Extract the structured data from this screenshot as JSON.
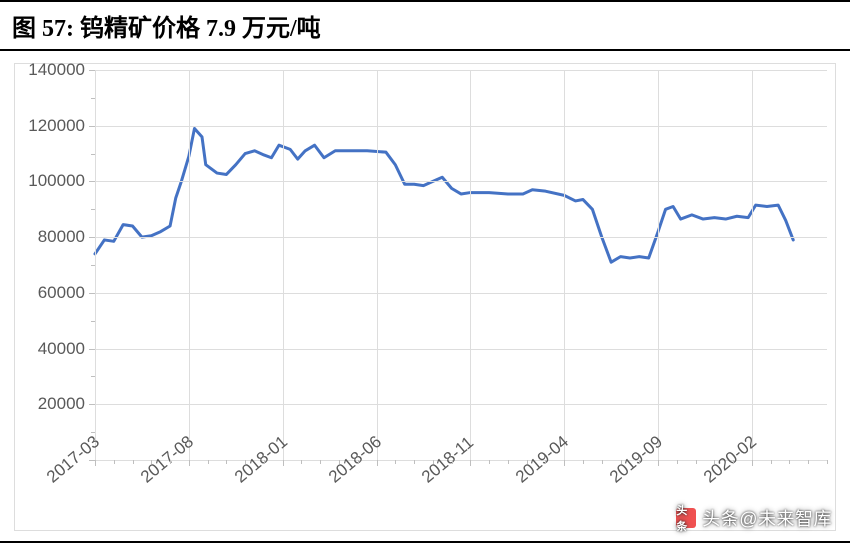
{
  "title": "图 57:  钨精矿价格 7.9 万元/吨",
  "chart": {
    "type": "line",
    "background_color": "#ffffff",
    "grid_color": "#dddddd",
    "axis_color": "#bfbfbf",
    "tick_color": "#bfbfbf",
    "label_color": "#595959",
    "label_fontsize": 17,
    "title_fontsize": 24,
    "line_color": "#4472c4",
    "line_width": 3,
    "ylim": [
      0,
      140000
    ],
    "ytick_step": 20000,
    "yticks": [
      0,
      20000,
      40000,
      60000,
      80000,
      100000,
      120000,
      140000
    ],
    "minor_yticks": [
      10000,
      30000,
      50000,
      70000,
      90000,
      110000,
      130000
    ],
    "xlim": [
      0,
      39
    ],
    "xticks": [
      {
        "pos": 0,
        "label": "2017-03"
      },
      {
        "pos": 5,
        "label": "2017-08"
      },
      {
        "pos": 10,
        "label": "2018-01"
      },
      {
        "pos": 15,
        "label": "2018-06"
      },
      {
        "pos": 20,
        "label": "2018-11"
      },
      {
        "pos": 25,
        "label": "2019-04"
      },
      {
        "pos": 30,
        "label": "2019-09"
      },
      {
        "pos": 35,
        "label": "2020-02"
      }
    ],
    "minor_xtick_step": 1,
    "series": [
      {
        "x": 0.0,
        "y": 74000
      },
      {
        "x": 0.5,
        "y": 79000
      },
      {
        "x": 1.0,
        "y": 78500
      },
      {
        "x": 1.5,
        "y": 84500
      },
      {
        "x": 2.0,
        "y": 84000
      },
      {
        "x": 2.5,
        "y": 80000
      },
      {
        "x": 3.0,
        "y": 80500
      },
      {
        "x": 3.5,
        "y": 82000
      },
      {
        "x": 4.0,
        "y": 84000
      },
      {
        "x": 4.3,
        "y": 94000
      },
      {
        "x": 4.6,
        "y": 100000
      },
      {
        "x": 5.0,
        "y": 109000
      },
      {
        "x": 5.3,
        "y": 119000
      },
      {
        "x": 5.7,
        "y": 116000
      },
      {
        "x": 5.9,
        "y": 106000
      },
      {
        "x": 6.5,
        "y": 103000
      },
      {
        "x": 7.0,
        "y": 102500
      },
      {
        "x": 7.5,
        "y": 106000
      },
      {
        "x": 8.0,
        "y": 110000
      },
      {
        "x": 8.5,
        "y": 111000
      },
      {
        "x": 9.0,
        "y": 109500
      },
      {
        "x": 9.4,
        "y": 108500
      },
      {
        "x": 9.8,
        "y": 113000
      },
      {
        "x": 10.4,
        "y": 111500
      },
      {
        "x": 10.8,
        "y": 108000
      },
      {
        "x": 11.2,
        "y": 111000
      },
      {
        "x": 11.7,
        "y": 113000
      },
      {
        "x": 12.2,
        "y": 108500
      },
      {
        "x": 12.8,
        "y": 111000
      },
      {
        "x": 13.5,
        "y": 111000
      },
      {
        "x": 14.5,
        "y": 111000
      },
      {
        "x": 15.5,
        "y": 110500
      },
      {
        "x": 16.0,
        "y": 106000
      },
      {
        "x": 16.5,
        "y": 99000
      },
      {
        "x": 17.0,
        "y": 99000
      },
      {
        "x": 17.5,
        "y": 98500
      },
      {
        "x": 18.0,
        "y": 100000
      },
      {
        "x": 18.5,
        "y": 101500
      },
      {
        "x": 19.0,
        "y": 97500
      },
      {
        "x": 19.5,
        "y": 95500
      },
      {
        "x": 20.0,
        "y": 96000
      },
      {
        "x": 21.0,
        "y": 96000
      },
      {
        "x": 22.0,
        "y": 95500
      },
      {
        "x": 22.8,
        "y": 95500
      },
      {
        "x": 23.3,
        "y": 97000
      },
      {
        "x": 24.0,
        "y": 96500
      },
      {
        "x": 25.0,
        "y": 95000
      },
      {
        "x": 25.6,
        "y": 93000
      },
      {
        "x": 26.0,
        "y": 93500
      },
      {
        "x": 26.5,
        "y": 90000
      },
      {
        "x": 27.0,
        "y": 80000
      },
      {
        "x": 27.5,
        "y": 71000
      },
      {
        "x": 28.0,
        "y": 73000
      },
      {
        "x": 28.5,
        "y": 72500
      },
      {
        "x": 29.0,
        "y": 73000
      },
      {
        "x": 29.5,
        "y": 72500
      },
      {
        "x": 30.0,
        "y": 82000
      },
      {
        "x": 30.4,
        "y": 90000
      },
      {
        "x": 30.8,
        "y": 91000
      },
      {
        "x": 31.2,
        "y": 86500
      },
      {
        "x": 31.8,
        "y": 88000
      },
      {
        "x": 32.4,
        "y": 86500
      },
      {
        "x": 33.0,
        "y": 87000
      },
      {
        "x": 33.6,
        "y": 86500
      },
      {
        "x": 34.2,
        "y": 87500
      },
      {
        "x": 34.8,
        "y": 87000
      },
      {
        "x": 35.2,
        "y": 91500
      },
      {
        "x": 35.8,
        "y": 91000
      },
      {
        "x": 36.4,
        "y": 91500
      },
      {
        "x": 36.8,
        "y": 86000
      },
      {
        "x": 37.2,
        "y": 79000
      }
    ]
  },
  "watermark": {
    "logo_text": "头条",
    "text": "头条@未来智库"
  }
}
